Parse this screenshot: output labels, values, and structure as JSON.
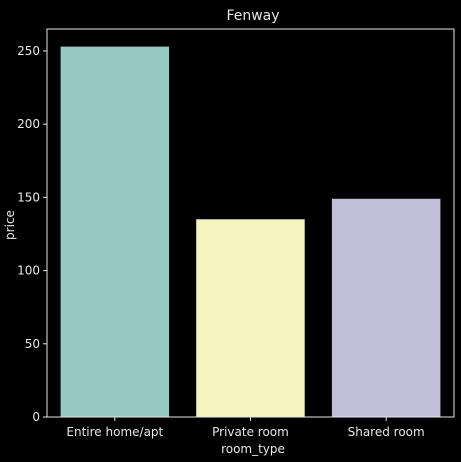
{
  "chart_data": {
    "type": "bar",
    "title": "Fenway",
    "xlabel": "room_type",
    "ylabel": "price",
    "categories": [
      "Entire home/apt",
      "Private room",
      "Shared room"
    ],
    "values": [
      253,
      135,
      149
    ],
    "ylim": [
      0,
      265
    ],
    "yticks": [
      "0",
      "50",
      "100",
      "150",
      "200",
      "250"
    ],
    "grid": false,
    "colors": [
      "#96cac0",
      "#f4f5c0",
      "#c2c0d8"
    ],
    "background": "#000000",
    "axis_color": "#e6e6e6"
  }
}
